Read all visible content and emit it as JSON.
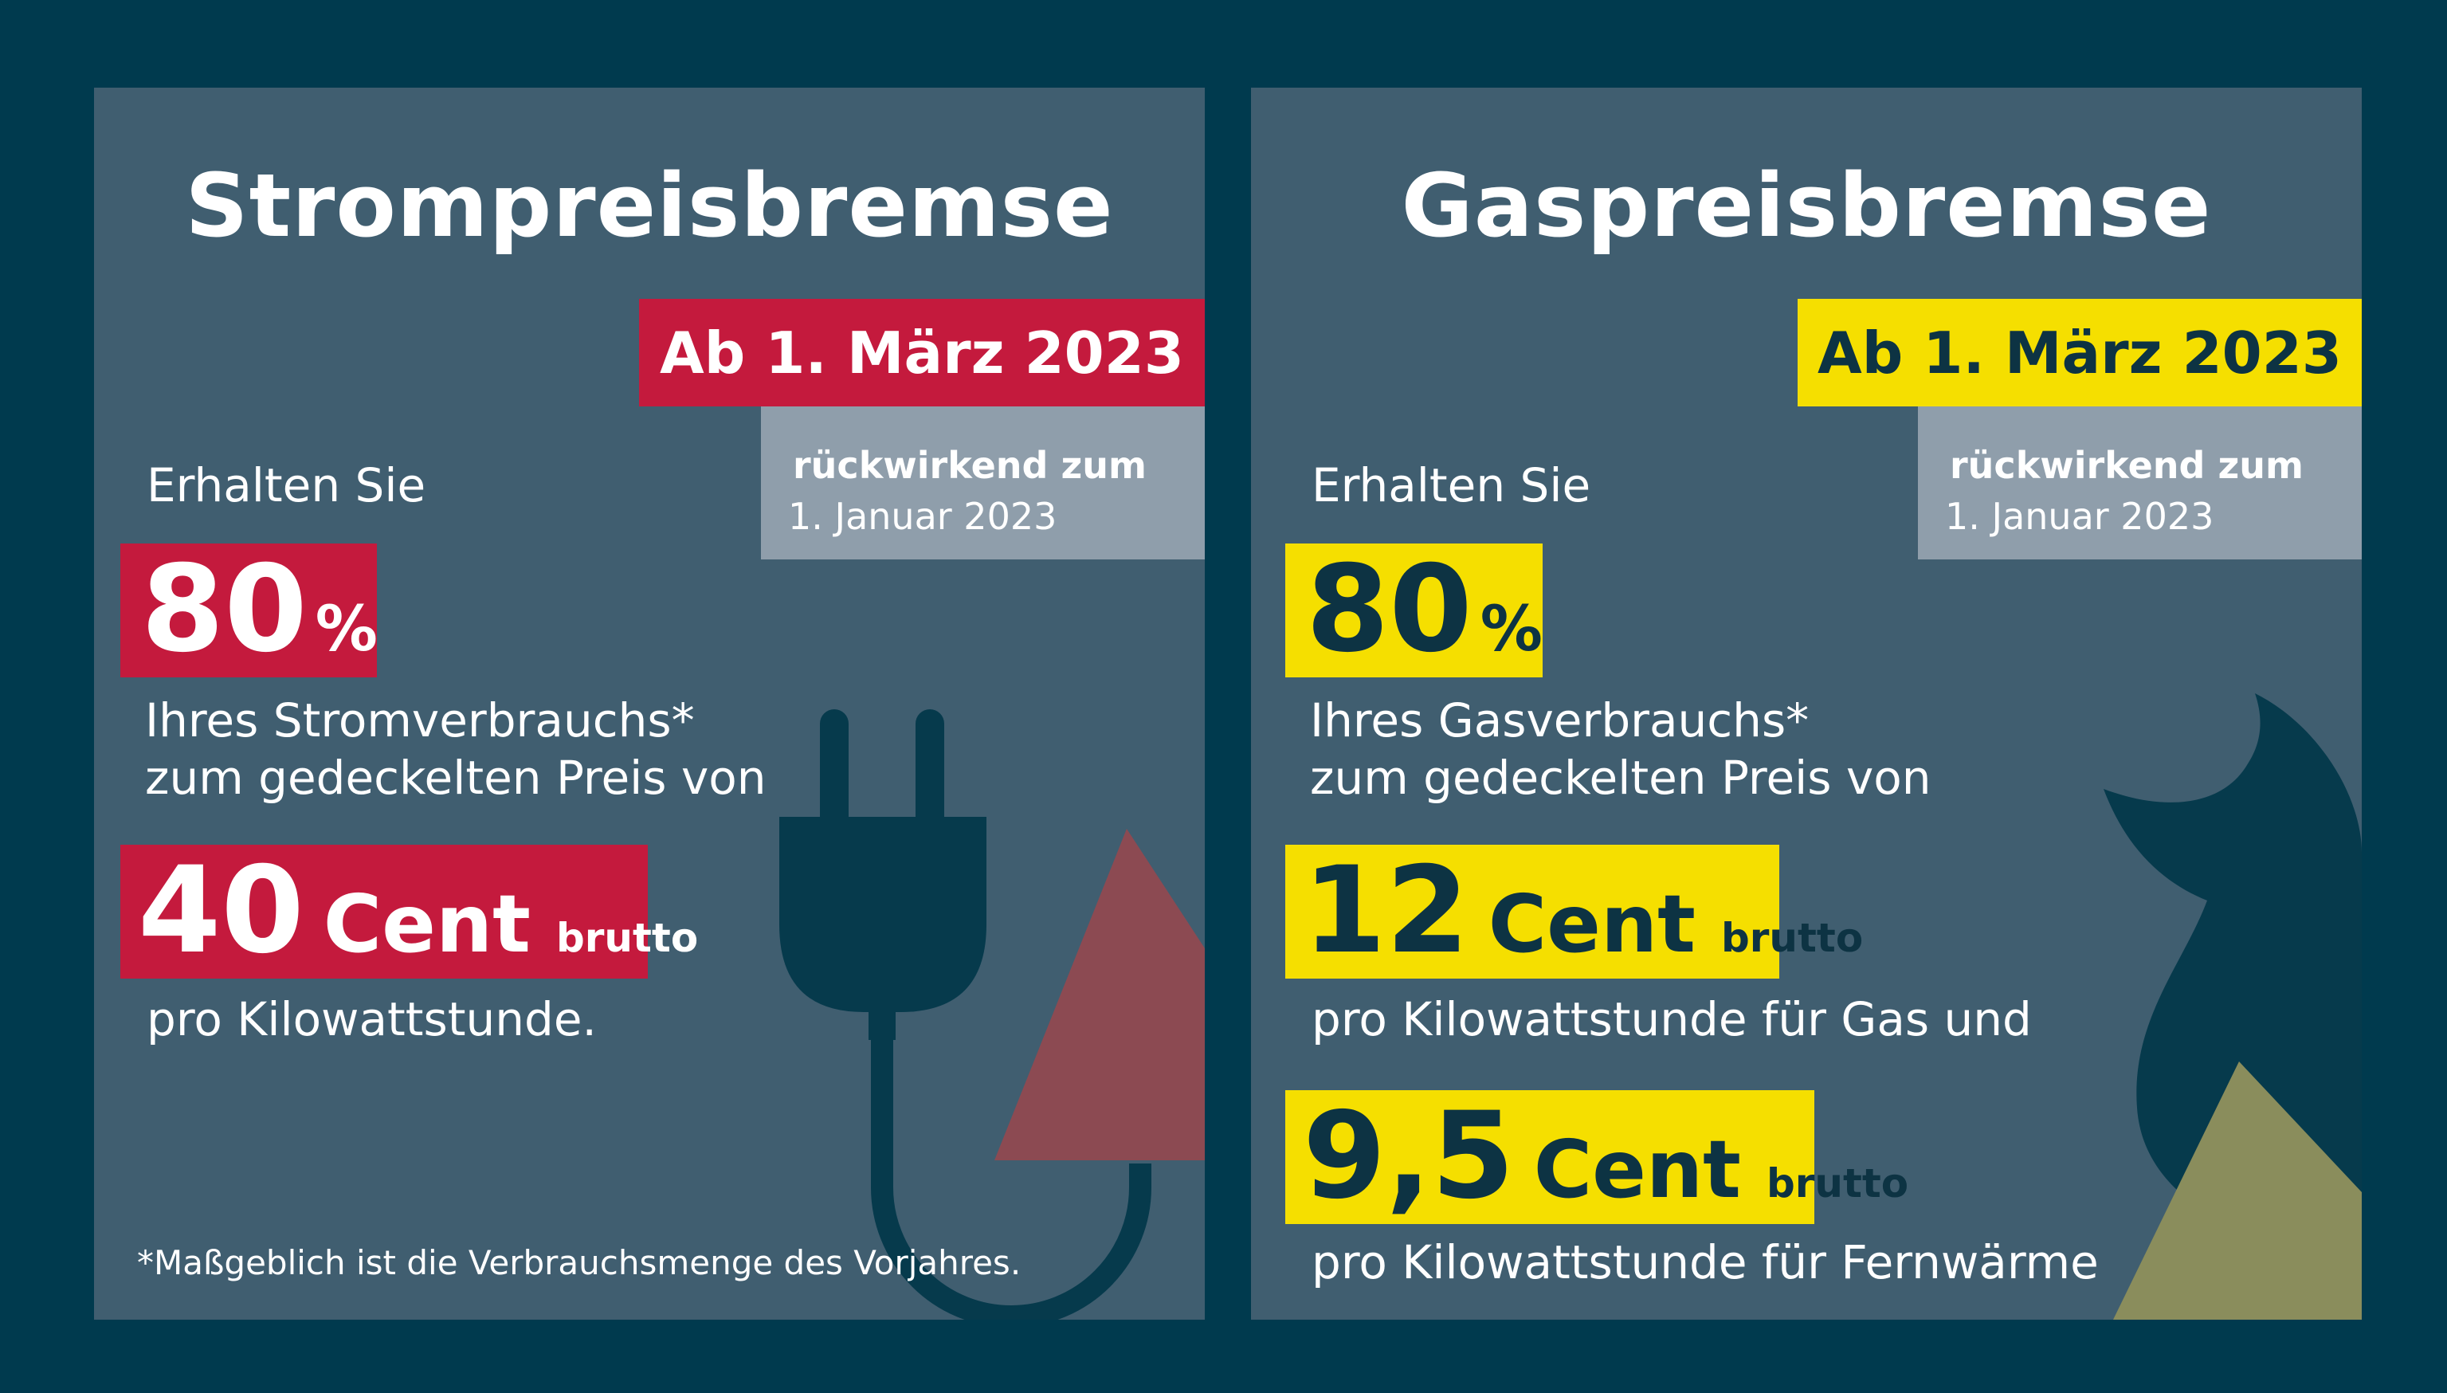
{
  "strom": {
    "title": "Strompreisbremse",
    "date": "Ab 1. März 2023",
    "retro_line1": "rückwirkend zum",
    "retro_line2": "1. Januar 2023",
    "intro": "Erhalten Sie",
    "percent_value": "80",
    "percent_sign": "%",
    "usage_line1": "Ihres Stromverbrauchs*",
    "usage_line2": "zum gedeckelten Preis von",
    "price_value": "40",
    "price_unit": "Cent",
    "price_suffix": "brutto",
    "price_note": "pro Kilowattstunde.",
    "footnote": "*Maßgeblich ist die Verbrauchsmenge des Vorjahres."
  },
  "gas": {
    "title": "Gaspreisbremse",
    "date": "Ab 1. März 2023",
    "retro_line1": "rückwirkend zum",
    "retro_line2": "1. Januar 2023",
    "intro": "Erhalten Sie",
    "percent_value": "80",
    "percent_sign": "%",
    "usage_line1": "Ihres Gasverbrauchs*",
    "usage_line2": "zum gedeckelten Preis von",
    "gas_price_value": "12",
    "gas_price_unit": "Cent",
    "gas_price_suffix": "brutto",
    "gas_price_note": "pro Kilowattstunde für Gas und",
    "heat_price_value": "9,5",
    "heat_price_unit": "Cent",
    "heat_price_suffix": "brutto",
    "heat_price_note": "pro Kilowattstunde für Fernwärme"
  },
  "colors": {
    "background": "#003a4e",
    "panel": "#405e70",
    "strom_accent": "#c41a3d",
    "gas_accent": "#f5df00",
    "retro_box": "#8f9eab"
  },
  "icons": {
    "strom": "power-plug-icon",
    "gas": "flame-icon"
  }
}
